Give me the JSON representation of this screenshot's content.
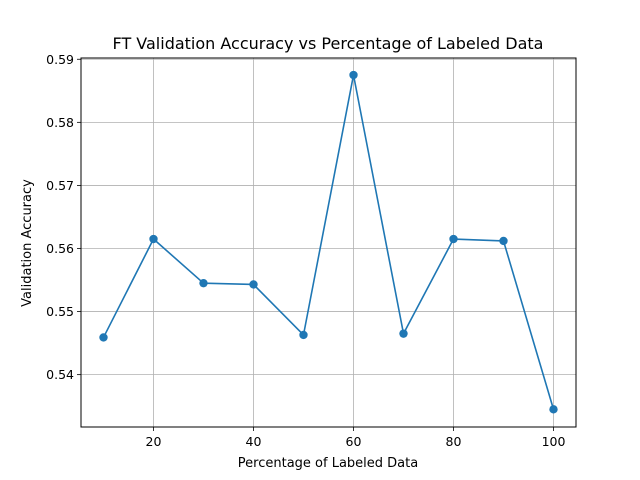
{
  "chart_data": {
    "type": "line",
    "title": "FT Validation Accuracy vs Percentage of Labeled Data",
    "xlabel": "Percentage of Labeled Data",
    "ylabel": "Validation Accuracy",
    "xlim": [
      5.5,
      104.5
    ],
    "ylim": [
      0.5317,
      0.5902
    ],
    "xticks": [
      20,
      40,
      60,
      80,
      100
    ],
    "yticks": [
      0.54,
      0.55,
      0.56,
      0.57,
      0.58,
      0.59
    ],
    "ytick_labels": [
      "0.54",
      "0.55",
      "0.56",
      "0.57",
      "0.58",
      "0.59"
    ],
    "grid": true,
    "marker": "circle",
    "color": "#1f77b4",
    "series": [
      {
        "x": [
          10,
          20,
          30,
          40,
          50,
          60,
          70,
          80,
          90,
          100
        ],
        "values": [
          0.5459,
          0.5615,
          0.5545,
          0.5543,
          0.5463,
          0.5875,
          0.5465,
          0.5615,
          0.5612,
          0.5345
        ]
      }
    ]
  }
}
